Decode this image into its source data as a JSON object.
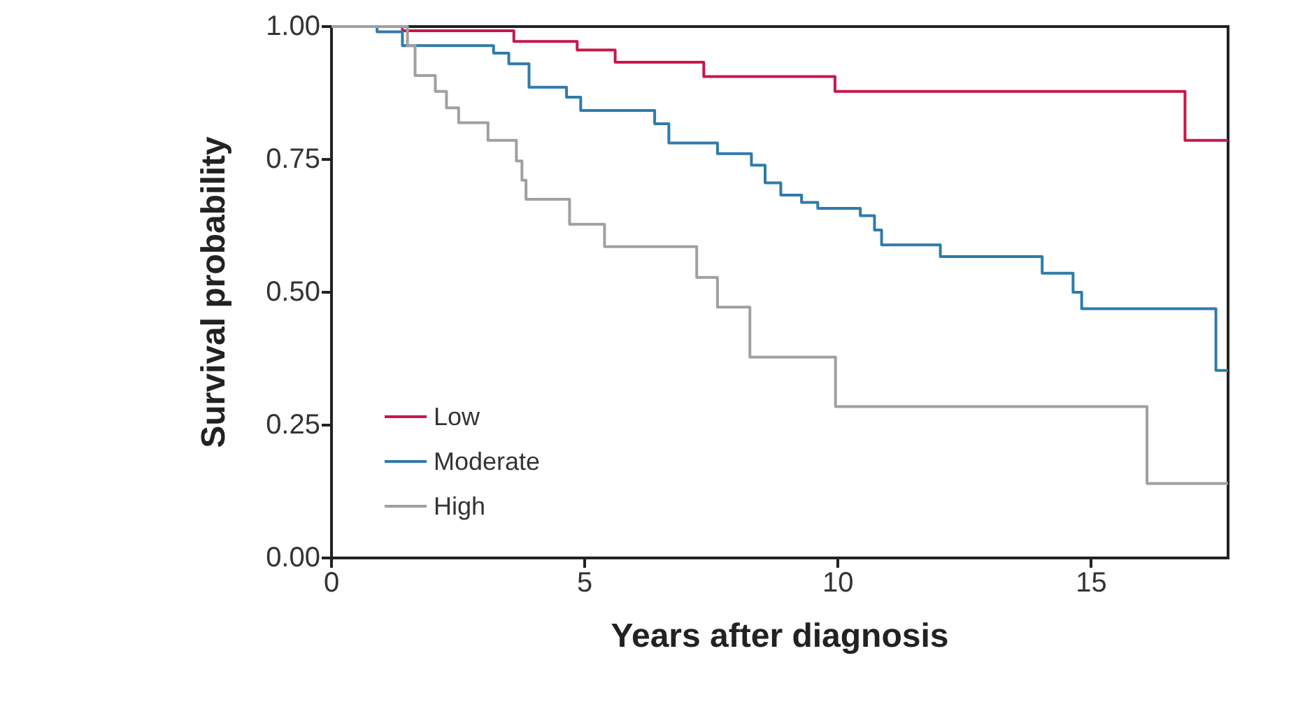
{
  "chart_data": {
    "type": "step",
    "xlabel": "Years after diagnosis",
    "ylabel": "Survival probability",
    "xlim": [
      0,
      17.7
    ],
    "xticks": [
      0,
      5,
      10,
      15
    ],
    "ylim": [
      0,
      1
    ],
    "yticks": [
      {
        "value": 0,
        "label": "0.00"
      },
      {
        "value": 0.25,
        "label": "0.25"
      },
      {
        "value": 0.5,
        "label": "0.50"
      },
      {
        "value": 0.75,
        "label": "0.75"
      },
      {
        "value": 1,
        "label": "1.00"
      }
    ],
    "grid": false,
    "legend": "bottom left",
    "series": [
      {
        "name": "Low",
        "color": "#c8174a",
        "x": [
          0,
          1.4,
          3.6,
          4.85,
          5.6,
          7.35,
          9.94,
          16.85,
          17.7
        ],
        "values": [
          1,
          0.992,
          0.972,
          0.956,
          0.933,
          0.906,
          0.878,
          0.786,
          0.786
        ]
      },
      {
        "name": "Moderate",
        "color": "#2f7bab",
        "x": [
          0,
          0.9,
          1.4,
          3.2,
          3.5,
          3.9,
          4.64,
          4.92,
          6.38,
          6.66,
          7.62,
          8.29,
          8.56,
          8.87,
          9.28,
          9.6,
          10.44,
          10.72,
          10.86,
          12.02,
          14.03,
          14.64,
          14.81,
          17.46,
          17.7
        ],
        "values": [
          1,
          0.99,
          0.964,
          0.95,
          0.93,
          0.886,
          0.867,
          0.842,
          0.817,
          0.781,
          0.761,
          0.739,
          0.706,
          0.683,
          0.669,
          0.658,
          0.644,
          0.617,
          0.589,
          0.567,
          0.536,
          0.5,
          0.469,
          0.353,
          0.353
        ]
      },
      {
        "name": "High",
        "color": "#a0a0a0",
        "x": [
          0,
          1.5,
          1.65,
          2.05,
          2.27,
          2.51,
          3.09,
          3.65,
          3.76,
          3.84,
          4.7,
          5.39,
          7.21,
          7.62,
          8.26,
          9.95,
          16.1,
          17.7
        ],
        "values": [
          1,
          0.964,
          0.908,
          0.878,
          0.847,
          0.819,
          0.786,
          0.747,
          0.711,
          0.675,
          0.628,
          0.586,
          0.528,
          0.472,
          0.378,
          0.285,
          0.14,
          0.14
        ]
      }
    ]
  }
}
